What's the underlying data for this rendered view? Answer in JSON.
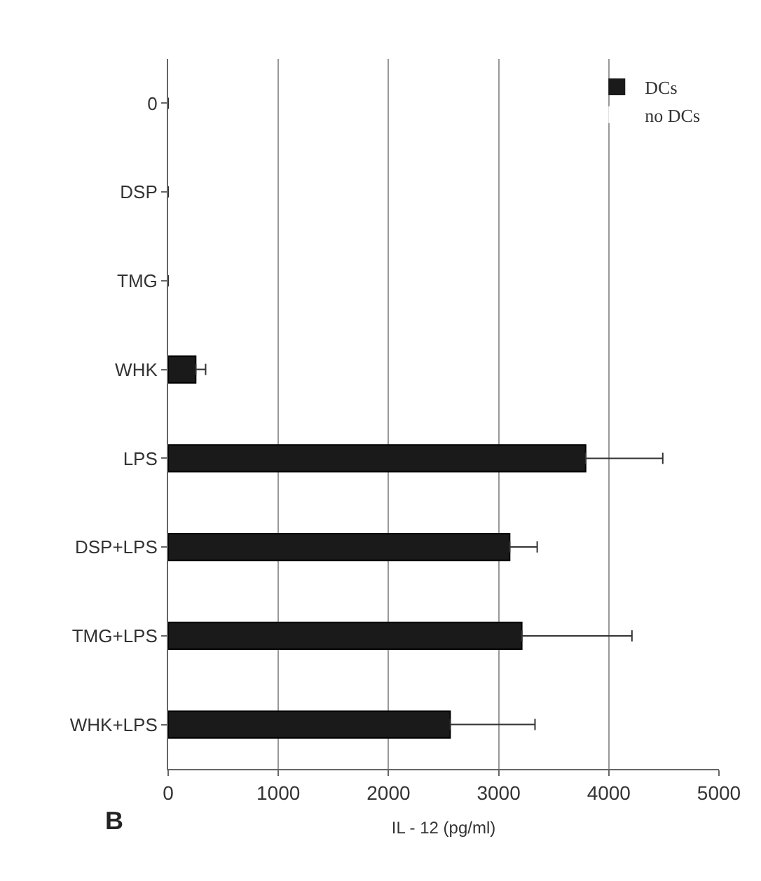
{
  "chart_data": {
    "type": "bar",
    "orientation": "horizontal",
    "xlabel": "IL - 12 (pg/ml)",
    "annotations": [
      "B"
    ],
    "categories": [
      "0",
      "DSP",
      "TMG",
      "WHK",
      "LPS",
      "DSP+LPS",
      "TMG+LPS",
      "WHK+LPS"
    ],
    "series": [
      {
        "name": "DCs",
        "color": "#1a1a1a",
        "values": [
          0,
          0,
          0,
          250,
          3790,
          3100,
          3210,
          2560
        ],
        "errors": [
          null,
          null,
          null,
          [
            250,
            340
          ],
          [
            3790,
            4490
          ],
          [
            3100,
            3350
          ],
          [
            3210,
            4210
          ],
          [
            2560,
            3330
          ]
        ]
      },
      {
        "name": "no DCs",
        "color": "#ffffff",
        "values": [
          0,
          0,
          0,
          0,
          0,
          0,
          0,
          0
        ]
      }
    ],
    "xlim": [
      0,
      5000
    ],
    "xticks": [
      0,
      1000,
      2000,
      3000,
      4000,
      5000
    ],
    "grid": "x",
    "legend": "top right"
  }
}
